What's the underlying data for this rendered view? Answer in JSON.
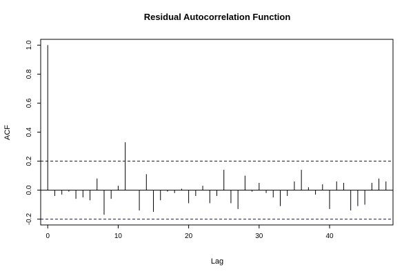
{
  "chart_data": {
    "type": "bar",
    "title": "Residual Autocorrelation Function",
    "xlabel": "Lag",
    "ylabel": "ACF",
    "xlim": [
      -1,
      49
    ],
    "ylim": [
      -0.24,
      1.04
    ],
    "x_ticks": [
      0,
      10,
      20,
      30,
      40
    ],
    "x_tick_labels": [
      "0",
      "10",
      "20",
      "30",
      "40"
    ],
    "y_ticks": [
      -0.2,
      0.0,
      0.2,
      0.4,
      0.6,
      0.8,
      1.0
    ],
    "y_tick_labels": [
      "-0.2",
      "0.0",
      "0.2",
      "0.4",
      "0.6",
      "0.8",
      "1.0"
    ],
    "confidence_bounds": [
      0.2,
      -0.2
    ],
    "confidence_color": "#0000ff",
    "grid": false,
    "x": [
      0,
      1,
      2,
      3,
      4,
      5,
      6,
      7,
      8,
      9,
      10,
      11,
      12,
      13,
      14,
      15,
      16,
      17,
      18,
      19,
      20,
      21,
      22,
      23,
      24,
      25,
      26,
      27,
      28,
      29,
      30,
      31,
      32,
      33,
      34,
      35,
      36,
      37,
      38,
      39,
      40,
      41,
      42,
      43,
      44,
      45,
      46,
      47,
      48
    ],
    "values": [
      1.0,
      -0.04,
      -0.03,
      -0.01,
      -0.06,
      -0.05,
      -0.07,
      0.08,
      -0.17,
      -0.06,
      0.03,
      0.33,
      0.0,
      -0.14,
      0.11,
      -0.15,
      -0.07,
      -0.01,
      -0.02,
      0.01,
      -0.09,
      -0.04,
      0.03,
      -0.09,
      -0.04,
      0.14,
      -0.09,
      -0.13,
      0.1,
      -0.01,
      0.05,
      -0.02,
      -0.05,
      -0.11,
      -0.04,
      0.06,
      0.14,
      0.02,
      -0.03,
      0.04,
      -0.13,
      0.06,
      0.05,
      -0.14,
      -0.11,
      -0.1,
      0.05,
      0.08,
      0.06
    ]
  }
}
